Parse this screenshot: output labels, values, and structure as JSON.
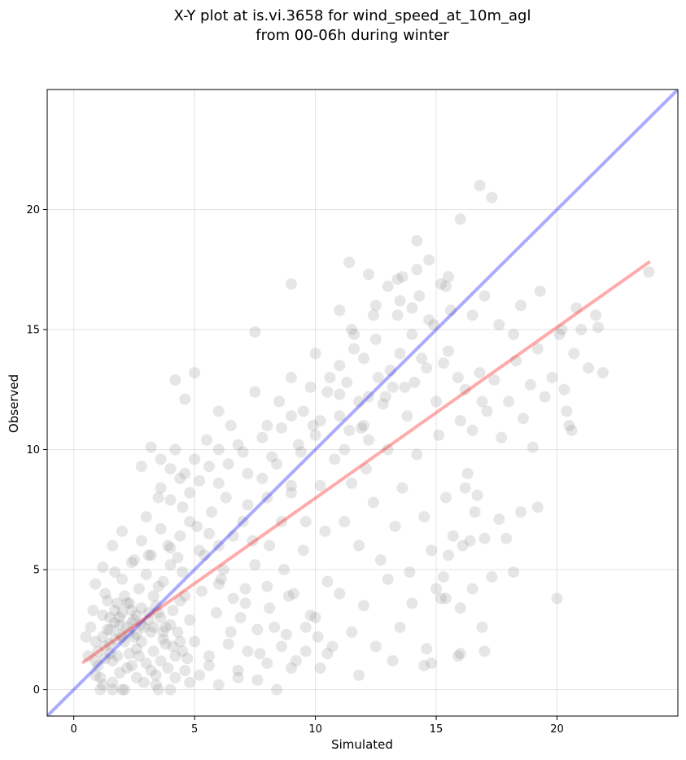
{
  "chart_data": {
    "type": "scatter",
    "title_line1": "X-Y plot at is.vi.3658 for wind_speed_at_10m_agl",
    "title_line2": "from 00-06h during winter",
    "xlabel": "Simulated",
    "ylabel": "Observed",
    "xlim": [
      -1.1,
      25.0
    ],
    "ylim": [
      -1.1,
      25.0
    ],
    "xticks": [
      0,
      5,
      10,
      15,
      20
    ],
    "yticks": [
      0,
      5,
      10,
      15,
      20
    ],
    "grid": true,
    "point_color": "#808080",
    "point_opacity": 0.2,
    "identity_line": {
      "color": "#0000ff",
      "opacity": 0.33,
      "x": [
        -1.1,
        25.0
      ],
      "y": [
        -1.1,
        25.0
      ]
    },
    "regression_line": {
      "color": "#ff0000",
      "opacity": 0.33,
      "x": [
        0.4,
        23.8
      ],
      "y": [
        1.15,
        17.8
      ]
    },
    "points": [
      [
        0.9,
        2.0
      ],
      [
        1.0,
        1.6
      ],
      [
        1.2,
        3.1
      ],
      [
        1.4,
        2.5
      ],
      [
        1.6,
        1.2
      ],
      [
        1.8,
        3.6
      ],
      [
        2.0,
        2.2
      ],
      [
        2.2,
        0.9
      ],
      [
        2.4,
        2.8
      ],
      [
        2.6,
        1.7
      ],
      [
        2.8,
        3.4
      ],
      [
        3.0,
        1.1
      ],
      [
        3.2,
        2.4
      ],
      [
        3.4,
        0.6
      ],
      [
        3.6,
        3.0
      ],
      [
        3.8,
        1.9
      ],
      [
        4.0,
        2.7
      ],
      [
        4.2,
        1.4
      ],
      [
        4.4,
        3.7
      ],
      [
        4.6,
        0.8
      ],
      [
        0.8,
        3.3
      ],
      [
        1.1,
        0.5
      ],
      [
        1.3,
        4.0
      ],
      [
        1.5,
        1.9
      ],
      [
        1.7,
        2.8
      ],
      [
        1.9,
        0.7
      ],
      [
        2.1,
        3.9
      ],
      [
        2.3,
        1.5
      ],
      [
        2.5,
        2.2
      ],
      [
        2.7,
        4.2
      ],
      [
        2.9,
        0.3
      ],
      [
        3.1,
        2.9
      ],
      [
        3.3,
        1.6
      ],
      [
        3.5,
        4.3
      ],
      [
        3.7,
        2.1
      ],
      [
        3.9,
        0.9
      ],
      [
        4.1,
        3.3
      ],
      [
        4.3,
        2.4
      ],
      [
        4.5,
        4.9
      ],
      [
        4.7,
        1.3
      ],
      [
        1.0,
        1.0
      ],
      [
        1.2,
        2.2
      ],
      [
        1.4,
        3.7
      ],
      [
        1.6,
        0.3
      ],
      [
        1.8,
        1.4
      ],
      [
        2.0,
        4.6
      ],
      [
        2.2,
        2.6
      ],
      [
        2.4,
        1.0
      ],
      [
        2.6,
        3.1
      ],
      [
        2.8,
        2.0
      ],
      [
        3.0,
        4.8
      ],
      [
        3.2,
        0.8
      ],
      [
        3.4,
        3.5
      ],
      [
        3.6,
        1.2
      ],
      [
        3.8,
        2.6
      ],
      [
        4.0,
        5.2
      ],
      [
        4.2,
        0.5
      ],
      [
        4.4,
        2.0
      ],
      [
        4.6,
        3.9
      ],
      [
        4.8,
        2.9
      ],
      [
        0.7,
        2.6
      ],
      [
        0.9,
        4.4
      ],
      [
        1.1,
        0.0
      ],
      [
        1.3,
        1.3
      ],
      [
        1.5,
        3.0
      ],
      [
        1.7,
        4.9
      ],
      [
        1.9,
        2.3
      ],
      [
        2.1,
        0.0
      ],
      [
        2.3,
        3.6
      ],
      [
        2.5,
        5.4
      ],
      [
        2.7,
        1.4
      ],
      [
        2.9,
        2.6
      ],
      [
        3.1,
        5.6
      ],
      [
        3.3,
        3.9
      ],
      [
        3.5,
        0.0
      ],
      [
        3.7,
        4.5
      ],
      [
        3.9,
        6.0
      ],
      [
        4.1,
        1.8
      ],
      [
        4.3,
        5.5
      ],
      [
        4.5,
        1.6
      ],
      [
        5.0,
        2.0
      ],
      [
        5.3,
        4.1
      ],
      [
        5.6,
        1.0
      ],
      [
        5.9,
        3.2
      ],
      [
        6.2,
        5.0
      ],
      [
        6.5,
        2.4
      ],
      [
        6.8,
        0.5
      ],
      [
        7.1,
        3.6
      ],
      [
        7.4,
        6.2
      ],
      [
        7.7,
        1.5
      ],
      [
        8.0,
        4.3
      ],
      [
        8.3,
        2.6
      ],
      [
        8.6,
        7.0
      ],
      [
        8.9,
        3.9
      ],
      [
        9.2,
        1.2
      ],
      [
        9.5,
        5.8
      ],
      [
        9.8,
        3.1
      ],
      [
        10.1,
        2.2
      ],
      [
        10.4,
        6.6
      ],
      [
        10.7,
        1.8
      ],
      [
        5.1,
        6.8
      ],
      [
        5.4,
        5.6
      ],
      [
        5.7,
        7.4
      ],
      [
        6.0,
        4.4
      ],
      [
        6.3,
        8.0
      ],
      [
        6.6,
        6.4
      ],
      [
        6.9,
        3.0
      ],
      [
        7.2,
        7.7
      ],
      [
        7.5,
        5.2
      ],
      [
        7.8,
        8.8
      ],
      [
        8.1,
        6.0
      ],
      [
        8.4,
        9.4
      ],
      [
        8.7,
        5.0
      ],
      [
        9.0,
        8.2
      ],
      [
        9.3,
        10.2
      ],
      [
        9.6,
        7.0
      ],
      [
        9.9,
        11.0
      ],
      [
        10.2,
        8.5
      ],
      [
        10.5,
        4.5
      ],
      [
        10.8,
        9.6
      ],
      [
        3.0,
        7.2
      ],
      [
        3.5,
        8.0
      ],
      [
        4.0,
        9.2
      ],
      [
        4.5,
        7.6
      ],
      [
        5.0,
        9.6
      ],
      [
        5.5,
        10.4
      ],
      [
        6.0,
        8.6
      ],
      [
        6.5,
        11.0
      ],
      [
        7.0,
        9.9
      ],
      [
        7.5,
        12.4
      ],
      [
        8.0,
        11.0
      ],
      [
        8.5,
        12.0
      ],
      [
        9.0,
        13.0
      ],
      [
        9.5,
        11.6
      ],
      [
        10.0,
        14.0
      ],
      [
        10.5,
        12.4
      ],
      [
        11.0,
        13.5
      ],
      [
        11.5,
        15.0
      ],
      [
        12.0,
        13.8
      ],
      [
        12.5,
        16.0
      ],
      [
        11.0,
        11.4
      ],
      [
        11.3,
        12.8
      ],
      [
        11.6,
        14.2
      ],
      [
        11.9,
        10.9
      ],
      [
        12.2,
        12.2
      ],
      [
        12.5,
        14.6
      ],
      [
        12.8,
        11.9
      ],
      [
        13.1,
        13.3
      ],
      [
        13.4,
        15.6
      ],
      [
        13.7,
        12.6
      ],
      [
        14.0,
        14.8
      ],
      [
        14.3,
        16.4
      ],
      [
        14.6,
        13.4
      ],
      [
        14.9,
        15.2
      ],
      [
        15.2,
        16.9
      ],
      [
        15.5,
        14.1
      ],
      [
        13.0,
        16.8
      ],
      [
        13.6,
        17.2
      ],
      [
        14.2,
        17.5
      ],
      [
        15.5,
        17.2
      ],
      [
        11.2,
        7.0
      ],
      [
        11.5,
        8.6
      ],
      [
        11.8,
        6.0
      ],
      [
        12.1,
        9.2
      ],
      [
        12.4,
        7.8
      ],
      [
        12.7,
        5.4
      ],
      [
        13.0,
        10.0
      ],
      [
        13.3,
        6.8
      ],
      [
        13.6,
        8.4
      ],
      [
        13.9,
        4.9
      ],
      [
        14.2,
        9.8
      ],
      [
        14.5,
        7.2
      ],
      [
        14.8,
        5.8
      ],
      [
        15.1,
        10.6
      ],
      [
        15.4,
        8.0
      ],
      [
        15.7,
        6.4
      ],
      [
        16.0,
        11.2
      ],
      [
        16.3,
        9.0
      ],
      [
        16.6,
        7.4
      ],
      [
        16.9,
        12.0
      ],
      [
        10.0,
        3.0
      ],
      [
        10.5,
        1.5
      ],
      [
        11.0,
        4.0
      ],
      [
        11.5,
        2.4
      ],
      [
        12.0,
        3.5
      ],
      [
        12.5,
        1.8
      ],
      [
        13.0,
        4.6
      ],
      [
        13.5,
        2.6
      ],
      [
        14.0,
        3.6
      ],
      [
        14.5,
        1.0
      ],
      [
        15.0,
        4.2
      ],
      [
        15.5,
        5.6
      ],
      [
        16.0,
        1.5
      ],
      [
        10.2,
        0.9
      ],
      [
        11.8,
        0.6
      ],
      [
        13.2,
        1.2
      ],
      [
        14.6,
        1.7
      ],
      [
        15.2,
        3.8
      ],
      [
        9.0,
        0.9
      ],
      [
        9.6,
        1.6
      ],
      [
        16.2,
        12.5
      ],
      [
        16.5,
        10.8
      ],
      [
        16.8,
        13.2
      ],
      [
        17.1,
        11.6
      ],
      [
        17.4,
        12.9
      ],
      [
        17.7,
        10.5
      ],
      [
        18.0,
        12.0
      ],
      [
        18.3,
        13.7
      ],
      [
        18.6,
        11.3
      ],
      [
        18.9,
        12.7
      ],
      [
        19.2,
        14.2
      ],
      [
        19.5,
        12.2
      ],
      [
        19.8,
        13.0
      ],
      [
        20.1,
        14.8
      ],
      [
        20.4,
        11.6
      ],
      [
        20.7,
        14.0
      ],
      [
        21.0,
        15.0
      ],
      [
        21.3,
        13.4
      ],
      [
        21.6,
        15.6
      ],
      [
        21.9,
        13.2
      ],
      [
        16.0,
        19.6
      ],
      [
        16.5,
        15.6
      ],
      [
        17.0,
        16.4
      ],
      [
        17.3,
        20.5
      ],
      [
        16.8,
        21.0
      ],
      [
        15.4,
        16.8
      ],
      [
        17.6,
        15.2
      ],
      [
        18.5,
        16.0
      ],
      [
        19.3,
        16.6
      ],
      [
        20.2,
        15.0
      ],
      [
        20.8,
        15.9
      ],
      [
        21.7,
        15.1
      ],
      [
        23.8,
        17.4
      ],
      [
        14.2,
        18.7
      ],
      [
        14.7,
        17.9
      ],
      [
        18.2,
        14.8
      ],
      [
        19.0,
        10.1
      ],
      [
        20.3,
        12.5
      ],
      [
        20.5,
        11.0
      ],
      [
        20.6,
        10.8
      ],
      [
        16.4,
        6.2
      ],
      [
        16.7,
        8.1
      ],
      [
        17.0,
        6.3
      ],
      [
        17.3,
        4.7
      ],
      [
        17.6,
        7.1
      ],
      [
        17.9,
        6.3
      ],
      [
        18.2,
        4.9
      ],
      [
        18.5,
        7.4
      ],
      [
        19.2,
        7.6
      ],
      [
        16.2,
        8.4
      ],
      [
        16.5,
        4.2
      ],
      [
        16.0,
        3.4
      ],
      [
        15.9,
        1.4
      ],
      [
        16.9,
        2.6
      ],
      [
        17.0,
        1.6
      ],
      [
        20.0,
        3.8
      ],
      [
        15.4,
        3.8
      ],
      [
        14.8,
        1.1
      ],
      [
        16.1,
        6.0
      ],
      [
        15.3,
        4.7
      ],
      [
        3.2,
        10.1
      ],
      [
        3.6,
        9.6
      ],
      [
        4.2,
        10.0
      ],
      [
        2.8,
        9.3
      ],
      [
        4.6,
        9.0
      ],
      [
        5.0,
        13.2
      ],
      [
        4.2,
        12.9
      ],
      [
        4.6,
        12.1
      ],
      [
        6.0,
        11.6
      ],
      [
        7.5,
        14.9
      ],
      [
        9.0,
        16.9
      ],
      [
        11.4,
        17.8
      ],
      [
        12.2,
        17.3
      ],
      [
        13.4,
        17.1
      ],
      [
        11.2,
        10.0
      ],
      [
        10.0,
        10.6
      ],
      [
        9.0,
        8.5
      ],
      [
        8.0,
        8.0
      ],
      [
        7.0,
        7.0
      ],
      [
        6.0,
        6.0
      ],
      [
        1.2,
        5.1
      ],
      [
        1.6,
        6.0
      ],
      [
        2.0,
        6.6
      ],
      [
        2.4,
        5.3
      ],
      [
        2.8,
        6.2
      ],
      [
        3.2,
        5.6
      ],
      [
        3.6,
        6.7
      ],
      [
        4.0,
        5.9
      ],
      [
        4.4,
        6.4
      ],
      [
        4.8,
        7.0
      ],
      [
        5.2,
        5.8
      ],
      [
        5.6,
        6.5
      ],
      [
        6.1,
        4.6
      ],
      [
        6.6,
        3.8
      ],
      [
        7.1,
        4.2
      ],
      [
        7.6,
        2.5
      ],
      [
        8.1,
        3.4
      ],
      [
        8.6,
        1.8
      ],
      [
        9.1,
        4.0
      ],
      [
        9.6,
        2.6
      ],
      [
        5.2,
        0.6
      ],
      [
        5.6,
        1.4
      ],
      [
        6.0,
        0.2
      ],
      [
        6.4,
        1.9
      ],
      [
        6.8,
        0.8
      ],
      [
        7.2,
        1.6
      ],
      [
        7.6,
        0.4
      ],
      [
        8.0,
        1.1
      ],
      [
        8.4,
        0.0
      ],
      [
        8.8,
        2.3
      ],
      [
        2.0,
        0.0
      ],
      [
        2.6,
        0.5
      ],
      [
        3.4,
        0.2
      ],
      [
        4.0,
        0.0
      ],
      [
        4.8,
        0.3
      ],
      [
        1.6,
        0.0
      ],
      [
        1.2,
        0.2
      ],
      [
        0.9,
        0.6
      ],
      [
        0.6,
        1.4
      ],
      [
        0.5,
        2.2
      ],
      [
        11.8,
        12.0
      ],
      [
        12.0,
        11.0
      ],
      [
        12.2,
        10.4
      ],
      [
        12.6,
        13.0
      ],
      [
        12.9,
        12.2
      ],
      [
        13.2,
        12.6
      ],
      [
        13.5,
        14.0
      ],
      [
        13.8,
        11.4
      ],
      [
        14.1,
        12.8
      ],
      [
        14.4,
        13.8
      ],
      [
        14.7,
        15.4
      ],
      [
        15.0,
        12.0
      ],
      [
        15.3,
        13.6
      ],
      [
        15.6,
        15.8
      ],
      [
        15.9,
        13.0
      ],
      [
        14.0,
        15.9
      ],
      [
        13.5,
        16.2
      ],
      [
        12.4,
        15.6
      ],
      [
        11.6,
        14.8
      ],
      [
        11.0,
        15.8
      ],
      [
        7.8,
        10.5
      ],
      [
        8.2,
        9.7
      ],
      [
        8.6,
        10.9
      ],
      [
        9.0,
        11.4
      ],
      [
        9.4,
        9.9
      ],
      [
        9.8,
        12.6
      ],
      [
        10.2,
        11.2
      ],
      [
        10.6,
        13.0
      ],
      [
        11.0,
        12.3
      ],
      [
        11.4,
        10.8
      ],
      [
        7.2,
        9.0
      ],
      [
        6.8,
        10.2
      ],
      [
        6.4,
        9.4
      ],
      [
        6.0,
        10.0
      ],
      [
        5.6,
        9.3
      ],
      [
        5.2,
        8.7
      ],
      [
        4.8,
        8.2
      ],
      [
        4.4,
        8.8
      ],
      [
        4.0,
        7.9
      ],
      [
        3.6,
        8.4
      ],
      [
        2.0,
        3.2
      ],
      [
        2.2,
        3.6
      ],
      [
        2.4,
        3.3
      ],
      [
        2.6,
        2.3
      ],
      [
        2.8,
        2.7
      ],
      [
        1.5,
        2.5
      ],
      [
        1.7,
        2.1
      ],
      [
        1.9,
        2.7
      ],
      [
        2.1,
        2.0
      ],
      [
        2.3,
        2.4
      ],
      [
        2.5,
        2.9
      ],
      [
        1.3,
        1.8
      ],
      [
        1.5,
        1.5
      ],
      [
        1.7,
        3.3
      ],
      [
        1.9,
        3.0
      ],
      [
        3.1,
        3.2
      ],
      [
        3.3,
        2.6
      ],
      [
        3.5,
        3.2
      ],
      [
        3.7,
        2.4
      ],
      [
        0.9,
        1.2
      ]
    ]
  }
}
